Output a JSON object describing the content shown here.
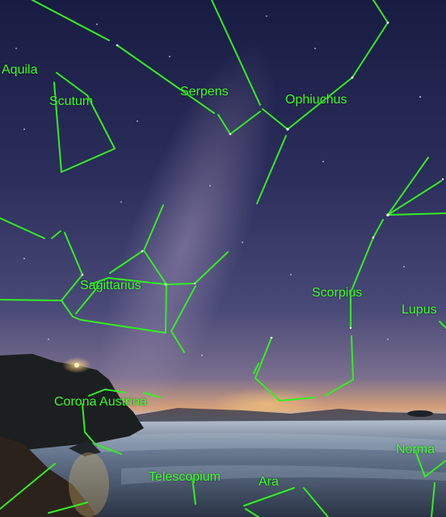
{
  "colors": {
    "line": "#33ee22",
    "label": "#3dff2a",
    "sky_top": "#1a1f45",
    "sky_mid": "#3c3f70",
    "horizon": "#e0a46a",
    "sea": "#8ea2b8"
  },
  "constellations": [
    {
      "key": "aquila",
      "label": "Aquila"
    },
    {
      "key": "scutum",
      "label": "Scutum"
    },
    {
      "key": "serpens",
      "label": "Serpens"
    },
    {
      "key": "ophiuchus",
      "label": "Ophiuchus"
    },
    {
      "key": "sagittarius",
      "label": "Sagittarius"
    },
    {
      "key": "scorpius",
      "label": "Scorpius"
    },
    {
      "key": "lupus",
      "label": "Lupus"
    },
    {
      "key": "corona-austrina",
      "label": "Corona Austrina"
    },
    {
      "key": "norma",
      "label": "Norma"
    },
    {
      "key": "telescopium",
      "label": "Telescopium"
    },
    {
      "key": "ara",
      "label": "Ara"
    }
  ]
}
